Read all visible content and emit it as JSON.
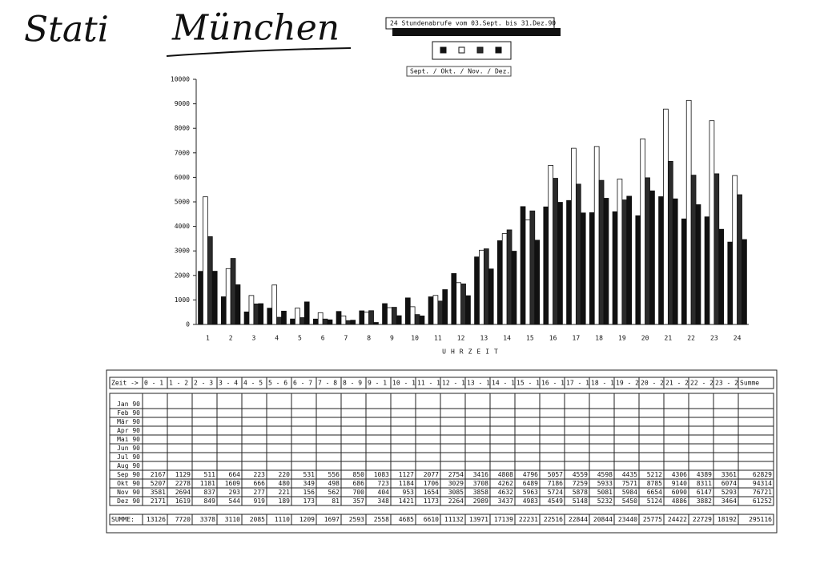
{
  "header": {
    "handwriting_1": "Stati",
    "handwriting_2": "München"
  },
  "chart_data": {
    "type": "bar",
    "title": "24 Stundenabrufe vom 03.Sept. bis 31.Dez.90",
    "legend_text": "Sept. / Okt. / Nov. / Dez.",
    "x_label": "UHRZEIT",
    "categories": [
      "1",
      "2",
      "3",
      "4",
      "5",
      "6",
      "7",
      "8",
      "9",
      "10",
      "11",
      "12",
      "13",
      "14",
      "15",
      "16",
      "17",
      "18",
      "19",
      "20",
      "21",
      "22",
      "23",
      "24"
    ],
    "series": [
      {
        "color": "#111111",
        "values": [
          2167,
          1129,
          511,
          664,
          223,
          220,
          531,
          556,
          850,
          1083,
          1127,
          2077,
          2754,
          3416,
          4808,
          4796,
          5057,
          4559,
          4598,
          4435,
          5212,
          4306,
          4389,
          3361
        ]
      },
      {
        "color": "#ffffff",
        "values": [
          5207,
          2278,
          1181,
          1609,
          666,
          480,
          349,
          498,
          686,
          723,
          1184,
          1706,
          3029,
          3708,
          4262,
          6489,
          7186,
          7259,
          5933,
          7571,
          8785,
          9140,
          8311,
          6074
        ]
      },
      {
        "color": "#2b2b2b",
        "values": [
          3581,
          2694,
          837,
          293,
          277,
          221,
          156,
          562,
          700,
          404,
          953,
          1654,
          3085,
          3858,
          4632,
          5963,
          5724,
          5878,
          5081,
          5984,
          6654,
          6090,
          6147,
          5293
        ]
      },
      {
        "color": "#111111",
        "values": [
          2171,
          1619,
          849,
          544,
          919,
          189,
          173,
          81,
          357,
          348,
          1421,
          1173,
          2264,
          2989,
          3437,
          4983,
          4549,
          5148,
          5232,
          5450,
          5124,
          4886,
          3882,
          3464
        ]
      }
    ],
    "ylim": [
      0,
      10000
    ],
    "yticks": [
      0,
      1000,
      2000,
      3000,
      4000,
      5000,
      6000,
      7000,
      8000,
      9000,
      10000
    ]
  },
  "table": {
    "header": [
      "Zeit ->",
      "0 - 1",
      "1 - 2",
      "2 - 3",
      "3 - 4",
      "4 - 5",
      "5 - 6",
      "6 - 7",
      "7 - 8",
      "8 - 9",
      "9 - 1",
      "10 - 1",
      "11 - 1",
      "12 - 1",
      "13 - 1",
      "14 - 1",
      "15 - 1",
      "16 - 1",
      "17 - 1",
      "18 - 1",
      "19 - 2",
      "20 - 2",
      "21 - 2",
      "22 - 2",
      "23 - 2",
      "Summe"
    ],
    "rows": [
      {
        "label": "Jan 90"
      },
      {
        "label": "Feb 90"
      },
      {
        "label": "Mär 90"
      },
      {
        "label": "Apr 90"
      },
      {
        "label": "Mai 90"
      },
      {
        "label": "Jun 90"
      },
      {
        "label": "Jul 90"
      },
      {
        "label": "Aug 90"
      },
      {
        "label": "Sep 90",
        "cells": [
          2167,
          1129,
          511,
          664,
          223,
          220,
          531,
          556,
          850,
          1083,
          1127,
          2077,
          2754,
          3416,
          4808,
          4796,
          5057,
          4559,
          4598,
          4435,
          5212,
          4306,
          4389,
          3361,
          62829
        ]
      },
      {
        "label": "Okt 90",
        "cells": [
          5207,
          2278,
          1181,
          1609,
          666,
          480,
          349,
          498,
          686,
          723,
          1184,
          1706,
          3029,
          3708,
          4262,
          6489,
          7186,
          7259,
          5933,
          7571,
          8785,
          9140,
          8311,
          6074,
          94314
        ]
      },
      {
        "label": "Nov 90",
        "cells": [
          3581,
          2694,
          837,
          293,
          277,
          221,
          156,
          562,
          700,
          404,
          953,
          1654,
          3085,
          3858,
          4632,
          5963,
          5724,
          5878,
          5081,
          5984,
          6654,
          6090,
          6147,
          5293,
          76721
        ]
      },
      {
        "label": "Dez 90",
        "cells": [
          2171,
          1619,
          849,
          544,
          919,
          189,
          173,
          81,
          357,
          348,
          1421,
          1173,
          2264,
          2989,
          3437,
          4983,
          4549,
          5148,
          5232,
          5450,
          5124,
          4886,
          3882,
          3464,
          61252
        ]
      }
    ],
    "summe": {
      "label": "SUMME:",
      "cells": [
        13126,
        7720,
        3378,
        3110,
        2085,
        1110,
        1209,
        1697,
        2593,
        2558,
        4685,
        6610,
        11132,
        13971,
        17139,
        22231,
        22516,
        22844,
        20844,
        23440,
        25775,
        24422,
        22729,
        18192,
        295116
      ]
    }
  }
}
